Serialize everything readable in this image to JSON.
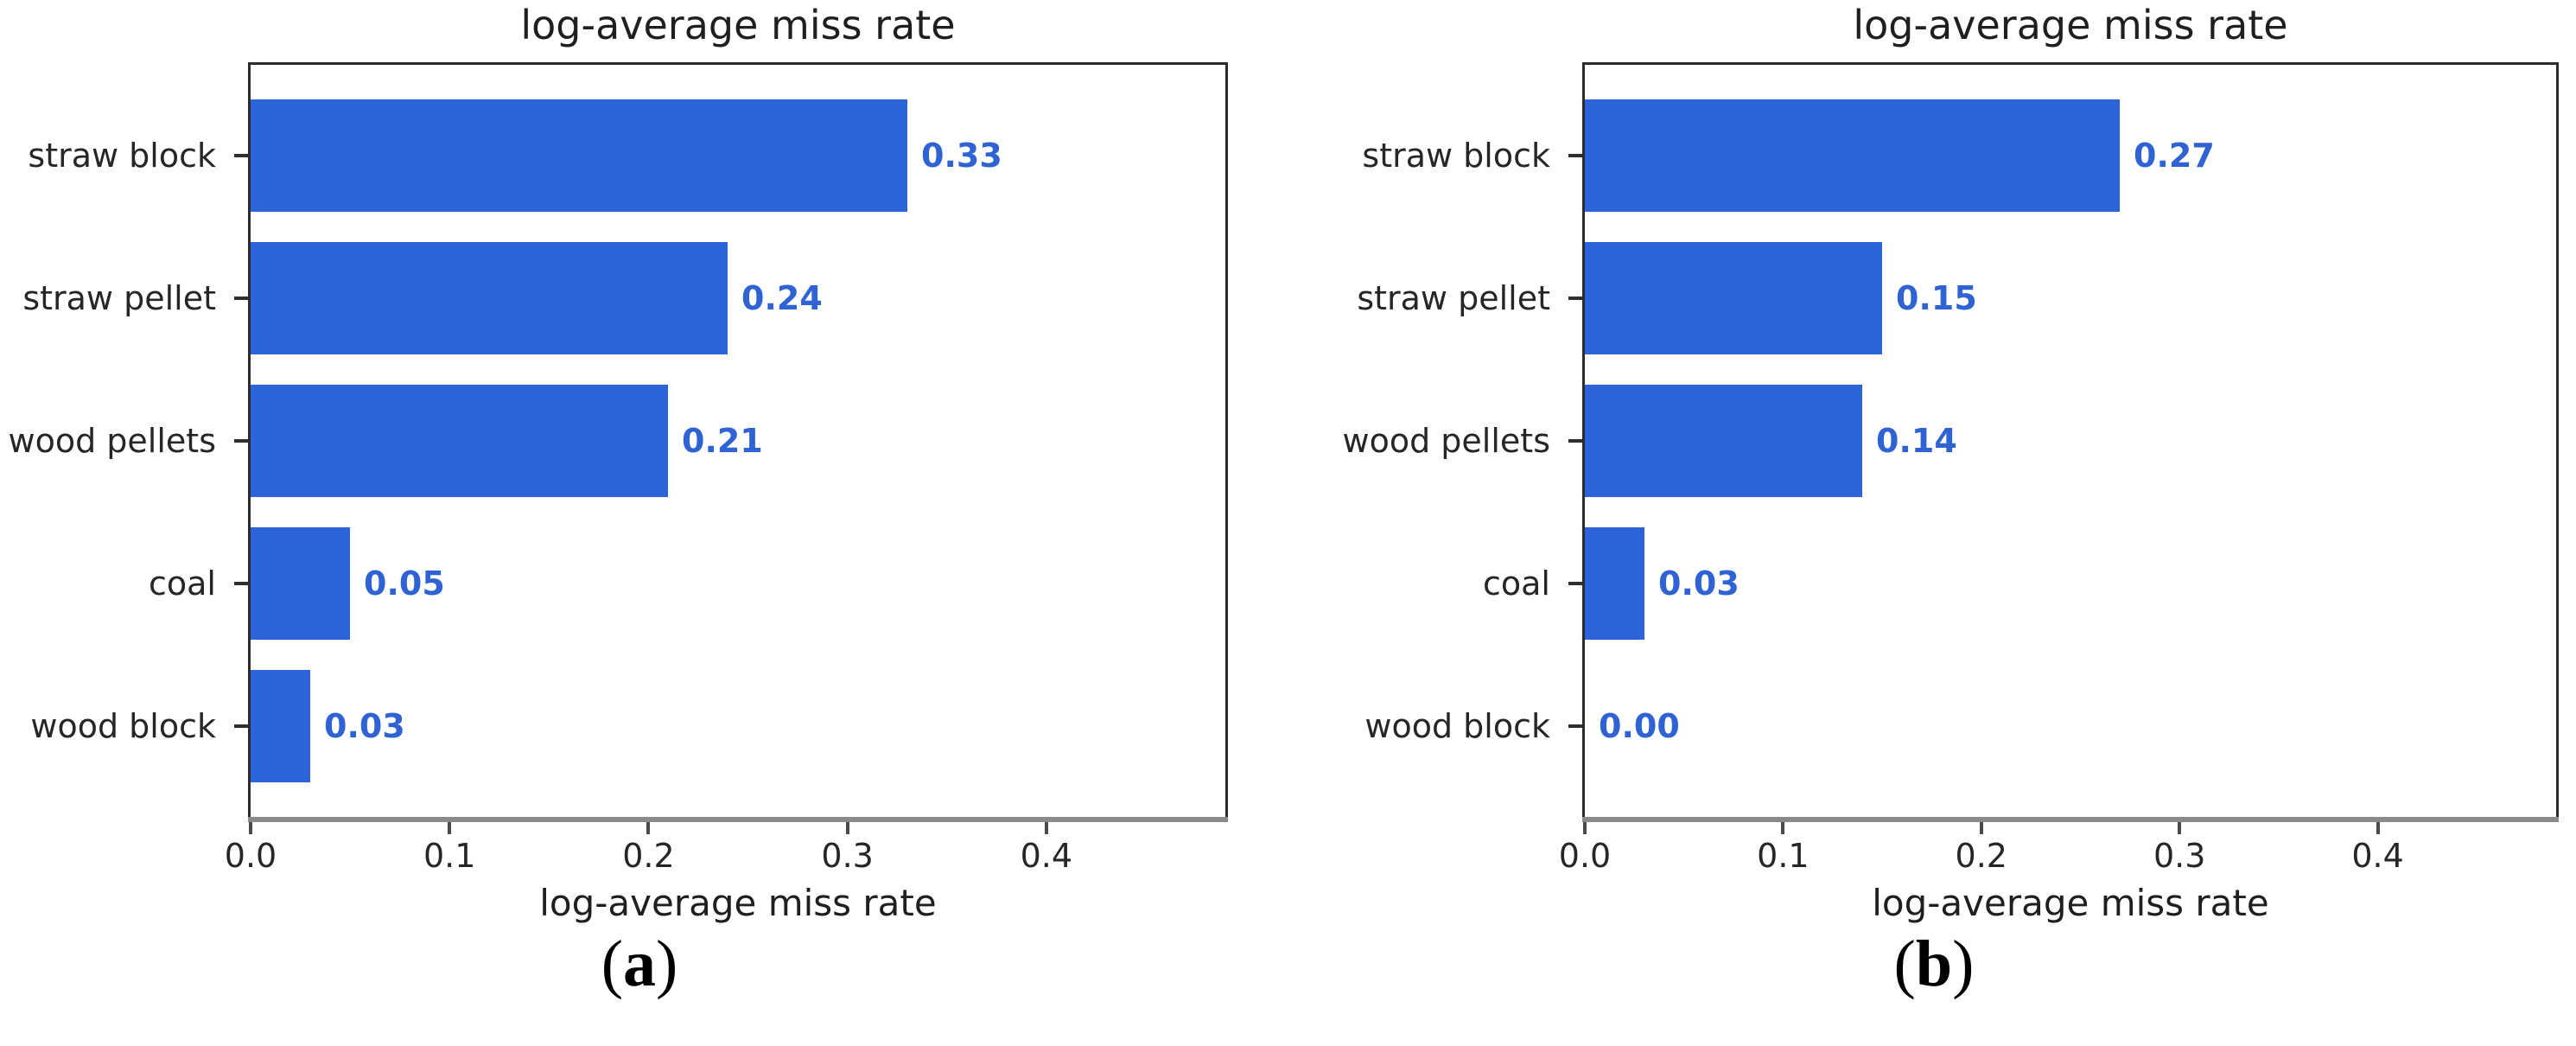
{
  "figure": {
    "background": "#ffffff",
    "bar_color": "#2d63d9",
    "value_label_color": "#2f62d2",
    "text_color": "#1f1f1f",
    "axis_frame_color": "#2b2b2b",
    "axis_baseline_color": "#8a8a8a"
  },
  "chart_data": [
    {
      "type": "bar",
      "orientation": "horizontal",
      "title": "log-average miss rate",
      "xlabel": "log-average miss rate",
      "caption": "(a)",
      "categories": [
        "straw block",
        "straw pellet",
        "wood pellets",
        "coal",
        "wood block"
      ],
      "values": [
        0.33,
        0.24,
        0.21,
        0.05,
        0.03
      ],
      "value_labels": [
        "0.33",
        "0.24",
        "0.21",
        "0.05",
        "0.03"
      ],
      "xticks": [
        0.0,
        0.1,
        0.2,
        0.3,
        0.4
      ],
      "xtick_labels": [
        "0.0",
        "0.1",
        "0.2",
        "0.3",
        "0.4"
      ],
      "xlim": [
        0,
        0.49
      ],
      "grid": false,
      "legend": null
    },
    {
      "type": "bar",
      "orientation": "horizontal",
      "title": "log-average miss rate",
      "xlabel": "log-average miss rate",
      "caption": "(b)",
      "categories": [
        "straw block",
        "straw pellet",
        "wood pellets",
        "coal",
        "wood block"
      ],
      "values": [
        0.27,
        0.15,
        0.14,
        0.03,
        0.0
      ],
      "value_labels": [
        "0.27",
        "0.15",
        "0.14",
        "0.03",
        "0.00"
      ],
      "xticks": [
        0.0,
        0.1,
        0.2,
        0.3,
        0.4
      ],
      "xtick_labels": [
        "0.0",
        "0.1",
        "0.2",
        "0.3",
        "0.4"
      ],
      "xlim": [
        0,
        0.49
      ],
      "grid": false,
      "legend": null
    }
  ]
}
